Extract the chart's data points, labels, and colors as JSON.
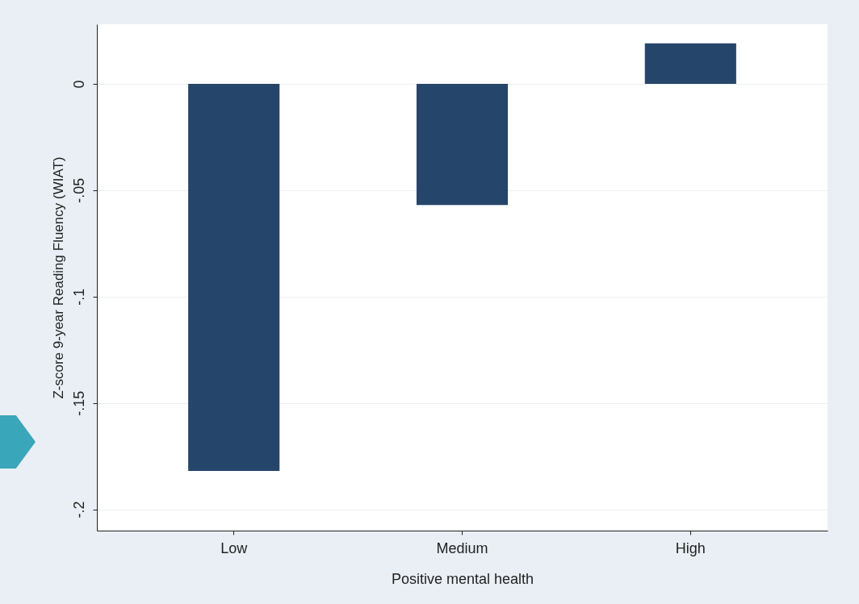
{
  "chart_data": {
    "type": "bar",
    "xlabel": "Positive mental health",
    "ylabel": "Z-score 9-year Reading Fluency (WIAT)",
    "categories": [
      "Low",
      "Medium",
      "High"
    ],
    "values": [
      -0.182,
      -0.057,
      0.019
    ],
    "color": "#26456a",
    "ylim": [
      -0.21,
      0.028
    ],
    "yticks": [
      {
        "value": 0,
        "label": "0"
      },
      {
        "value": -0.05,
        "label": "-.05"
      },
      {
        "value": -0.1,
        "label": "-.1"
      },
      {
        "value": -0.15,
        "label": "-.15"
      },
      {
        "value": -0.2,
        "label": "-.2"
      }
    ],
    "grid": "y"
  }
}
